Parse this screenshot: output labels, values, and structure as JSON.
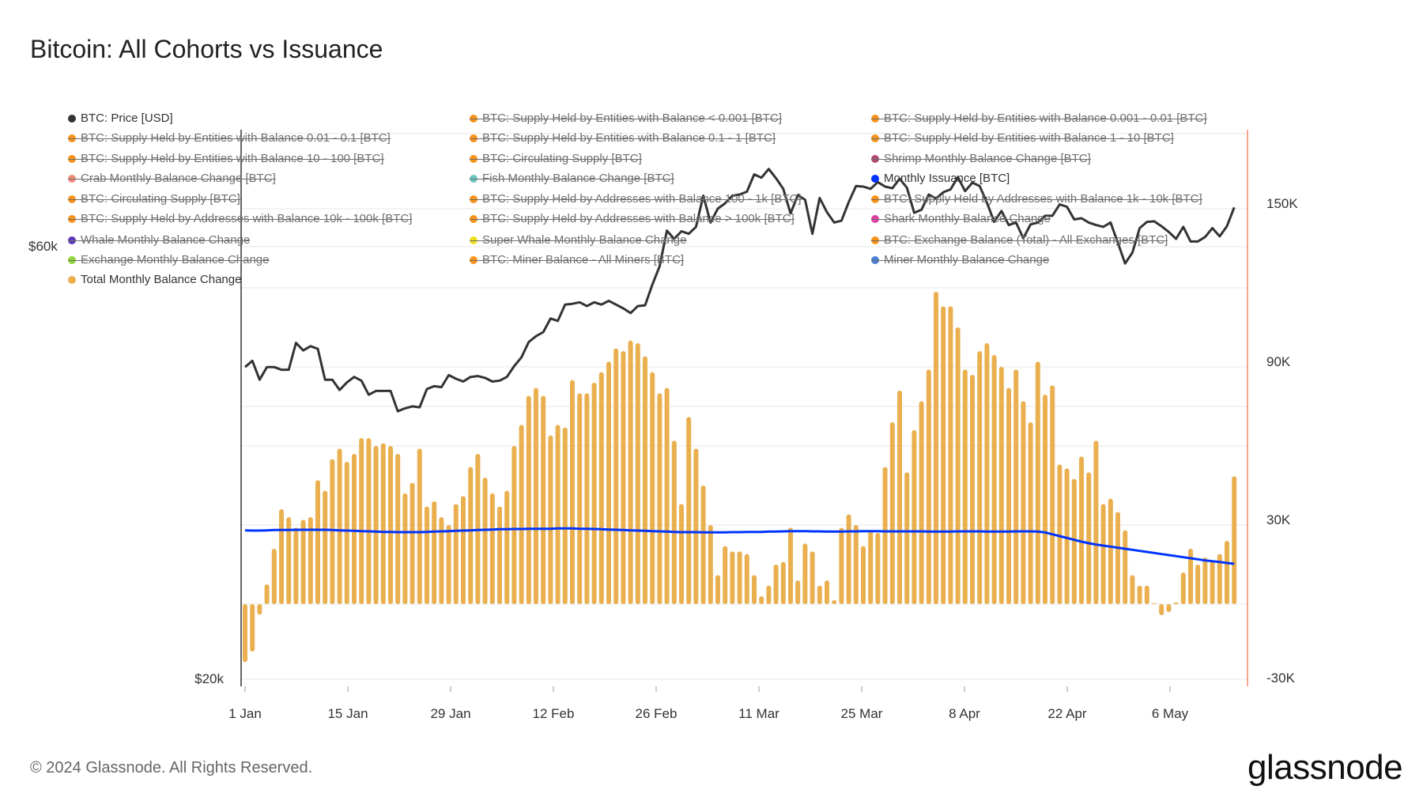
{
  "title": "Bitcoin: All Cohorts vs Issuance",
  "footer": "© 2024 Glassnode. All Rights Reserved.",
  "logo": "glassnode",
  "legend": [
    {
      "label": "BTC: Price [USD]",
      "color": "#333333",
      "active": true
    },
    {
      "label": "BTC: Supply Held by Entities with Balance < 0.001 [BTC]",
      "color": "#f7931a",
      "active": false
    },
    {
      "label": "BTC: Supply Held by Entities with Balance 0.001 - 0.01 [BTC]",
      "color": "#f7931a",
      "active": false
    },
    {
      "label": "BTC: Supply Held by Entities with Balance 0.01 - 0.1 [BTC]",
      "color": "#f7931a",
      "active": false
    },
    {
      "label": "BTC: Supply Held by Entities with Balance 0.1 - 1 [BTC]",
      "color": "#f7931a",
      "active": false
    },
    {
      "label": "BTC: Supply Held by Entities with Balance 1 - 10 [BTC]",
      "color": "#f7931a",
      "active": false
    },
    {
      "label": "BTC: Supply Held by Entities with Balance 10 - 100 [BTC]",
      "color": "#f7931a",
      "active": false
    },
    {
      "label": "BTC: Circulating Supply [BTC]",
      "color": "#f7931a",
      "active": false
    },
    {
      "label": "Shrimp Monthly Balance Change [BTC]",
      "color": "#b04a72",
      "active": false
    },
    {
      "label": "Crab Monthly Balance Change [BTC]",
      "color": "#f08b7a",
      "active": false
    },
    {
      "label": "Fish Monthly Balance Change [BTC]",
      "color": "#6cc5c0",
      "active": false
    },
    {
      "label": "Monthly Issuance [BTC]",
      "color": "#0033ff",
      "active": true
    },
    {
      "label": "BTC: Circulating Supply [BTC]",
      "color": "#f7931a",
      "active": false
    },
    {
      "label": "BTC: Supply Held by Addresses with Balance 100 - 1k [BTC]",
      "color": "#f7931a",
      "active": false
    },
    {
      "label": "BTC: Supply Held by Addresses with Balance 1k - 10k [BTC]",
      "color": "#f7931a",
      "active": false
    },
    {
      "label": "BTC: Supply Held by Addresses with Balance 10k - 100k [BTC]",
      "color": "#f7931a",
      "active": false
    },
    {
      "label": "BTC: Supply Held by Addresses with Balance > 100k [BTC]",
      "color": "#f7931a",
      "active": false
    },
    {
      "label": "Shark Monthly Balance Change",
      "color": "#e040a0",
      "active": false
    },
    {
      "label": "Whale Monthly Balance Change",
      "color": "#5b3ab8",
      "active": false
    },
    {
      "label": "Super Whale Monthly Balance Change",
      "color": "#f0e020",
      "active": false
    },
    {
      "label": "BTC: Exchange Balance (Total) - All Exchanges [BTC]",
      "color": "#f7931a",
      "active": false
    },
    {
      "label": "Exchange Monthly Balance Change",
      "color": "#8ed63a",
      "active": false
    },
    {
      "label": "BTC: Miner Balance - All Miners [BTC]",
      "color": "#f7931a",
      "active": false
    },
    {
      "label": "Miner Monthly Balance Change",
      "color": "#4a7fd4",
      "active": false
    },
    {
      "label": "Total Monthly Balance Change",
      "color": "#eab04f",
      "active": true
    }
  ],
  "chart_data": {
    "type": "bar+line",
    "title": "Bitcoin: All Cohorts vs Issuance",
    "x_tick_labels": [
      "1 Jan",
      "15 Jan",
      "29 Jan",
      "12 Feb",
      "26 Feb",
      "11 Mar",
      "25 Mar",
      "8 Apr",
      "22 Apr",
      "6 May"
    ],
    "left_axis": {
      "scale": "log",
      "tick_labels": [
        "$60k",
        "$20k"
      ],
      "ticks": [
        60000,
        20000
      ],
      "gridlines": [
        20000,
        40000,
        60000,
        80000
      ]
    },
    "right_axis": {
      "scale": "linear",
      "tick_labels": [
        "150K",
        "90K",
        "30K",
        "-30K"
      ],
      "ticks": [
        150000,
        90000,
        30000,
        -30000
      ],
      "range": [
        -30000,
        180000
      ]
    },
    "grid": true,
    "legend_placement": "top",
    "x": [
      "1 Jan",
      "2 Jan",
      "3 Jan",
      "4 Jan",
      "5 Jan",
      "6 Jan",
      "7 Jan",
      "8 Jan",
      "9 Jan",
      "10 Jan",
      "11 Jan",
      "12 Jan",
      "13 Jan",
      "14 Jan",
      "15 Jan",
      "16 Jan",
      "17 Jan",
      "18 Jan",
      "19 Jan",
      "20 Jan",
      "21 Jan",
      "22 Jan",
      "23 Jan",
      "24 Jan",
      "25 Jan",
      "26 Jan",
      "27 Jan",
      "28 Jan",
      "29 Jan",
      "30 Jan",
      "31 Jan",
      "1 Feb",
      "2 Feb",
      "3 Feb",
      "4 Feb",
      "5 Feb",
      "6 Feb",
      "7 Feb",
      "8 Feb",
      "9 Feb",
      "10 Feb",
      "11 Feb",
      "12 Feb",
      "13 Feb",
      "14 Feb",
      "15 Feb",
      "16 Feb",
      "17 Feb",
      "18 Feb",
      "19 Feb",
      "20 Feb",
      "21 Feb",
      "22 Feb",
      "23 Feb",
      "24 Feb",
      "25 Feb",
      "26 Feb",
      "27 Feb",
      "28 Feb",
      "29 Feb",
      "1 Mar",
      "2 Mar",
      "3 Mar",
      "4 Mar",
      "5 Mar",
      "6 Mar",
      "7 Mar",
      "8 Mar",
      "9 Mar",
      "10 Mar",
      "11 Mar",
      "12 Mar",
      "13 Mar",
      "14 Mar",
      "15 Mar",
      "16 Mar",
      "17 Mar",
      "18 Mar",
      "19 Mar",
      "20 Mar",
      "21 Mar",
      "22 Mar",
      "23 Mar",
      "24 Mar",
      "25 Mar",
      "26 Mar",
      "27 Mar",
      "28 Mar",
      "29 Mar",
      "30 Mar",
      "31 Mar",
      "1 Apr",
      "2 Apr",
      "3 Apr",
      "4 Apr",
      "5 Apr",
      "6 Apr",
      "7 Apr",
      "8 Apr",
      "9 Apr",
      "10 Apr",
      "11 Apr",
      "12 Apr",
      "13 Apr",
      "14 Apr",
      "15 Apr",
      "16 Apr",
      "17 Apr",
      "18 Apr",
      "19 Apr",
      "20 Apr",
      "21 Apr",
      "22 Apr",
      "23 Apr",
      "24 Apr",
      "25 Apr",
      "26 Apr",
      "27 Apr",
      "28 Apr",
      "29 Apr",
      "30 Apr",
      "1 May",
      "2 May",
      "3 May",
      "4 May",
      "5 May",
      "6 May",
      "7 May",
      "8 May",
      "9 May",
      "10 May",
      "11 May",
      "12 May",
      "13 May",
      "14 May",
      "15 May",
      "16 May"
    ],
    "series": [
      {
        "name": "BTC: Price [USD]",
        "type": "line",
        "axis": "left",
        "color": "#333333",
        "values": [
          44200,
          44900,
          42800,
          44200,
          44200,
          43900,
          43900,
          47000,
          46100,
          46600,
          46300,
          42800,
          42800,
          41700,
          42500,
          43100,
          42700,
          41200,
          41600,
          41600,
          41600,
          39500,
          39800,
          40000,
          39900,
          41800,
          42100,
          42000,
          43300,
          42900,
          42600,
          43100,
          43200,
          43000,
          42600,
          42700,
          43100,
          44300,
          45300,
          47100,
          47800,
          48300,
          50000,
          49700,
          51800,
          51900,
          52100,
          51600,
          52100,
          51800,
          52300,
          51800,
          51300,
          50700,
          51600,
          51700,
          54500,
          57100,
          62500,
          61200,
          62400,
          62000,
          63100,
          68300,
          63800,
          66100,
          67000,
          68300,
          68500,
          69000,
          72100,
          71500,
          73100,
          71400,
          69500,
          65300,
          68400,
          67600,
          62000,
          67900,
          65500,
          63800,
          64100,
          67200,
          70000,
          69900,
          69500,
          70700,
          69900,
          69600,
          71300,
          69700,
          65400,
          65900,
          68500,
          67800,
          68900,
          69400,
          71600,
          69100,
          70600,
          70000,
          67100,
          63900,
          65700,
          63400,
          63800,
          61300,
          63500,
          63800,
          64900,
          64900,
          66800,
          66400,
          64300,
          64500,
          63800,
          63400,
          63100,
          63800,
          60600,
          57500,
          59100,
          62900,
          63900,
          64000,
          63200,
          62300,
          61200,
          63100,
          60800,
          60800,
          61500,
          62900,
          61600,
          63200,
          66300
        ]
      },
      {
        "name": "Monthly Issuance [BTC]",
        "type": "line",
        "axis": "right",
        "color": "#0033ff",
        "values": [
          28000,
          27900,
          27900,
          28000,
          28100,
          28100,
          28100,
          28200,
          28200,
          28200,
          28200,
          28200,
          28100,
          28000,
          27900,
          27800,
          27700,
          27600,
          27500,
          27400,
          27400,
          27300,
          27300,
          27300,
          27300,
          27400,
          27500,
          27600,
          27700,
          27800,
          27900,
          28000,
          28100,
          28200,
          28300,
          28400,
          28400,
          28500,
          28500,
          28600,
          28600,
          28600,
          28600,
          28700,
          28700,
          28700,
          28600,
          28600,
          28500,
          28400,
          28300,
          28200,
          28100,
          28000,
          27900,
          27800,
          27700,
          27600,
          27500,
          27400,
          27300,
          27300,
          27300,
          27200,
          27200,
          27200,
          27200,
          27300,
          27300,
          27400,
          27400,
          27400,
          27500,
          27500,
          27600,
          27700,
          27700,
          27700,
          27600,
          27600,
          27500,
          27500,
          27500,
          27600,
          27600,
          27700,
          27700,
          27700,
          27600,
          27600,
          27600,
          27600,
          27600,
          27600,
          27500,
          27500,
          27500,
          27500,
          27600,
          27600,
          27600,
          27600,
          27500,
          27500,
          27500,
          27500,
          27600,
          27600,
          27600,
          27500,
          27200,
          26500,
          25800,
          25100,
          24400,
          23700,
          23100,
          22600,
          22200,
          21800,
          21400,
          21000,
          20600,
          20200,
          19800,
          19400,
          19000,
          18600,
          18200,
          17800,
          17400,
          17000,
          16600,
          16300,
          16000,
          15600,
          15300
        ]
      },
      {
        "name": "Total Monthly Balance Change",
        "type": "bar",
        "axis": "right",
        "color": "#eab04f",
        "values": [
          -22000,
          -18000,
          -4000,
          7500,
          21000,
          36000,
          33000,
          29000,
          32000,
          33000,
          47000,
          43000,
          55000,
          59000,
          54000,
          57000,
          63000,
          63000,
          60000,
          61000,
          60000,
          57000,
          42000,
          46000,
          59000,
          37000,
          39000,
          33000,
          30000,
          38000,
          41000,
          52000,
          57000,
          48000,
          42000,
          37000,
          43000,
          60000,
          68000,
          79000,
          82000,
          79000,
          64000,
          68000,
          67000,
          85000,
          80000,
          80000,
          84000,
          88000,
          92000,
          97000,
          96000,
          100000,
          99000,
          94000,
          88000,
          80000,
          82000,
          62000,
          38000,
          71000,
          59000,
          45000,
          30000,
          11000,
          22000,
          20000,
          20000,
          19000,
          11000,
          3000,
          7000,
          15000,
          16000,
          29000,
          9000,
          23000,
          20000,
          7000,
          9000,
          1500,
          29000,
          34000,
          30000,
          22000,
          28000,
          27000,
          52000,
          69000,
          81000,
          50000,
          66000,
          77000,
          89000,
          118500,
          113000,
          113000,
          105000,
          89000,
          87000,
          96000,
          99000,
          94500,
          90000,
          82000,
          89000,
          77000,
          69000,
          92000,
          79500,
          83000,
          53000,
          51500,
          47500,
          56000,
          50000,
          62000,
          38000,
          40000,
          35000,
          28000,
          11000,
          7000,
          7000,
          300,
          -4200,
          -3000,
          600,
          12000,
          21000,
          15000,
          17700,
          16500,
          19000,
          24000,
          48500
        ]
      }
    ]
  }
}
